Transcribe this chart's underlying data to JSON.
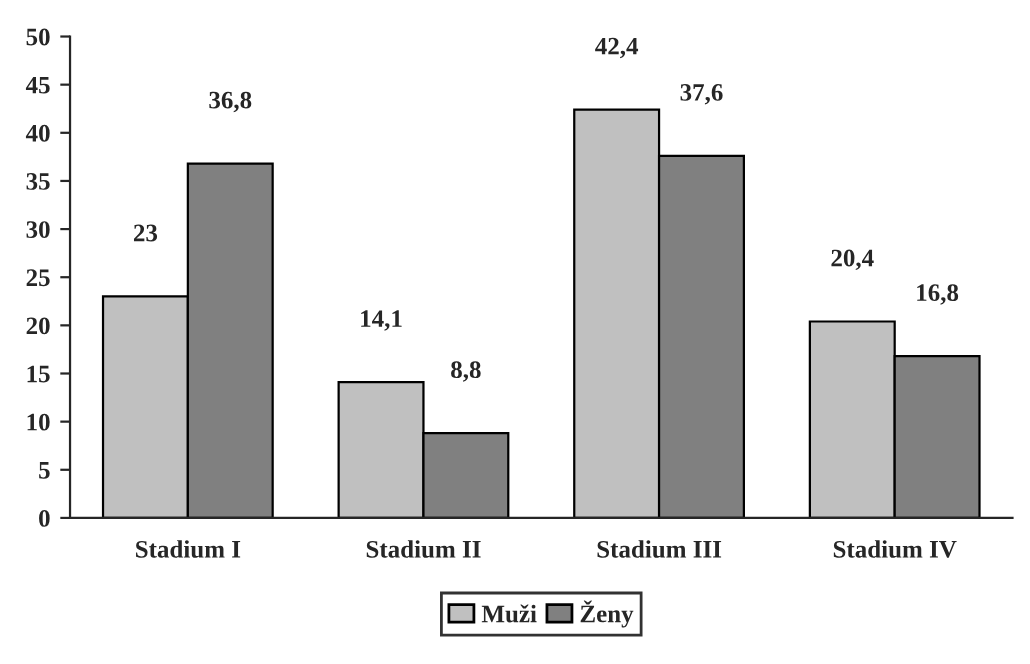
{
  "chart_data": {
    "type": "bar",
    "categories": [
      "Stadium I",
      "Stadium II",
      "Stadium III",
      "Stadium IV"
    ],
    "series": [
      {
        "name": "Muži",
        "color": "#c0c0c0",
        "values": [
          23,
          14.1,
          42.4,
          20.4
        ],
        "value_labels": [
          "23",
          "14,1",
          "42,4",
          "20,4"
        ]
      },
      {
        "name": "Ženy",
        "color": "#808080",
        "values": [
          36.8,
          8.8,
          37.6,
          16.8
        ],
        "value_labels": [
          "36,8",
          "8,8",
          "37,6",
          "16,8"
        ]
      }
    ],
    "ylim": [
      0,
      50
    ],
    "yticks": [
      0,
      5,
      10,
      15,
      20,
      25,
      30,
      35,
      40,
      45,
      50
    ],
    "grid": false,
    "legend": "bottom"
  }
}
